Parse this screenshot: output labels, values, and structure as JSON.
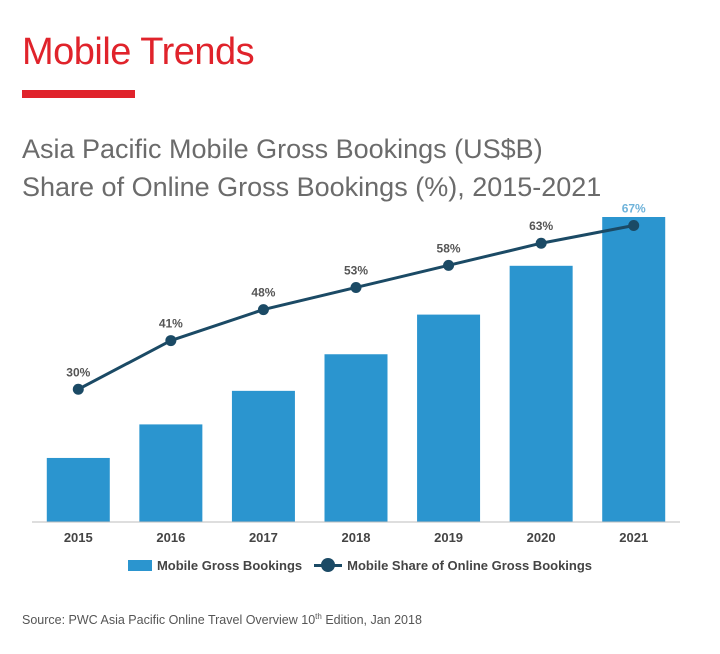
{
  "page": {
    "title": "Mobile Trends",
    "heading_line1": "Asia Pacific Mobile Gross Bookings (US$B)",
    "heading_line2": "Share of Online Gross Bookings (%), 2015-2021",
    "source_pre": "Source: PWC Asia Pacific Online Travel Overview 10",
    "source_sup": "th",
    "source_post": " Edition, Jan 2018",
    "accent_color": "#e0232b"
  },
  "chart_data": {
    "type": "bar",
    "categories": [
      "2015",
      "2016",
      "2017",
      "2018",
      "2019",
      "2020",
      "2021"
    ],
    "series": [
      {
        "name": "Mobile Gross Bookings",
        "type": "bar",
        "values": [
          21,
          32,
          43,
          55,
          68,
          84,
          100
        ],
        "color": "#2b95cf"
      },
      {
        "name": "Mobile Share of Online Gross Bookings",
        "type": "line",
        "values": [
          30,
          41,
          48,
          53,
          58,
          63,
          67
        ],
        "labels": [
          "30%",
          "41%",
          "48%",
          "53%",
          "58%",
          "63%",
          "67%"
        ],
        "color": "#1b4a65"
      }
    ],
    "bar_ylim": [
      0,
      100
    ],
    "line_ylim": [
      0,
      80
    ],
    "axis_tick_labels_visible": false,
    "grid": false,
    "legend_position": "bottom"
  }
}
